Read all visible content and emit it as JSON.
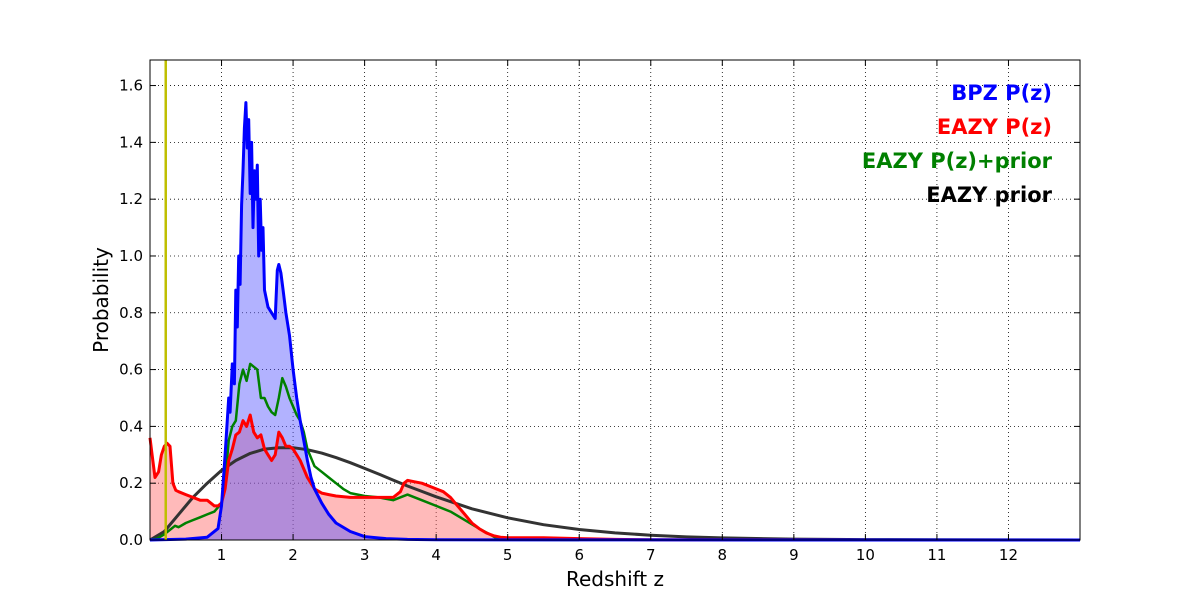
{
  "chart_data": {
    "type": "area",
    "title": "",
    "xlabel": "Redshift z",
    "ylabel": "Probability",
    "xlim": [
      0,
      13
    ],
    "ylim": [
      0,
      1.69
    ],
    "xticks": [
      1,
      2,
      3,
      4,
      5,
      6,
      7,
      8,
      9,
      10,
      11,
      12
    ],
    "xtick_labels": [
      "1",
      "2",
      "3",
      "4",
      "5",
      "6",
      "7",
      "8",
      "9",
      "10",
      "11",
      "12"
    ],
    "yticks": [
      0,
      0.2,
      0.4,
      0.6,
      0.8,
      1.0,
      1.2,
      1.4,
      1.6
    ],
    "ytick_labels": [
      "0.0",
      "0.2",
      "0.4",
      "0.6",
      "0.8",
      "1.0",
      "1.2",
      "1.4",
      "1.6"
    ],
    "grid": true,
    "legend_position": "top-right",
    "vertical_line": {
      "x": 0.22,
      "color": "#bfbf00"
    },
    "series": [
      {
        "name": "BPZ P(z)",
        "color": "#0000ff",
        "fill": "#5555ff",
        "filled": true,
        "x": [
          0,
          0.5,
          0.8,
          0.95,
          1.0,
          1.05,
          1.1,
          1.12,
          1.15,
          1.18,
          1.2,
          1.22,
          1.24,
          1.26,
          1.28,
          1.3,
          1.32,
          1.34,
          1.36,
          1.38,
          1.4,
          1.42,
          1.44,
          1.46,
          1.48,
          1.5,
          1.52,
          1.54,
          1.56,
          1.58,
          1.6,
          1.65,
          1.7,
          1.75,
          1.78,
          1.8,
          1.83,
          1.86,
          1.9,
          1.95,
          2.0,
          2.05,
          2.1,
          2.15,
          2.2,
          2.25,
          2.3,
          2.4,
          2.5,
          2.6,
          2.8,
          3.0,
          3.3,
          3.6,
          4.0,
          5.0,
          7.0,
          10.0,
          13.0
        ],
        "y": [
          0,
          0.003,
          0.01,
          0.04,
          0.12,
          0.3,
          0.5,
          0.45,
          0.62,
          0.55,
          0.88,
          0.75,
          1.0,
          0.9,
          1.18,
          1.3,
          1.45,
          1.54,
          1.38,
          1.48,
          1.22,
          1.4,
          1.1,
          1.3,
          1.2,
          1.32,
          1.0,
          1.2,
          1.02,
          1.1,
          0.88,
          0.82,
          0.8,
          0.78,
          0.95,
          0.97,
          0.94,
          0.88,
          0.8,
          0.72,
          0.6,
          0.5,
          0.42,
          0.35,
          0.28,
          0.22,
          0.18,
          0.13,
          0.09,
          0.06,
          0.03,
          0.012,
          0.005,
          0.002,
          0.001,
          0.0005,
          0.0002,
          0.0001,
          0.0
        ]
      },
      {
        "name": "EAZY P(z)",
        "color": "#ff0000",
        "fill": "#ff6666",
        "filled": true,
        "x": [
          0,
          0.03,
          0.07,
          0.12,
          0.16,
          0.2,
          0.24,
          0.28,
          0.32,
          0.36,
          0.4,
          0.5,
          0.6,
          0.7,
          0.8,
          0.85,
          0.9,
          0.95,
          1.0,
          1.05,
          1.1,
          1.15,
          1.2,
          1.25,
          1.3,
          1.35,
          1.4,
          1.45,
          1.5,
          1.55,
          1.6,
          1.65,
          1.7,
          1.75,
          1.8,
          1.85,
          1.9,
          1.95,
          2.0,
          2.05,
          2.1,
          2.15,
          2.2,
          2.3,
          2.4,
          2.5,
          2.6,
          2.8,
          3.0,
          3.2,
          3.4,
          3.5,
          3.55,
          3.6,
          3.7,
          3.8,
          3.9,
          4.0,
          4.1,
          4.2,
          4.3,
          4.4,
          4.5,
          4.6,
          4.7,
          4.8,
          4.9,
          5.0,
          5.5,
          6.0,
          6.5,
          7.0,
          8.0,
          13.0
        ],
        "y": [
          0.36,
          0.3,
          0.22,
          0.24,
          0.3,
          0.33,
          0.34,
          0.33,
          0.2,
          0.175,
          0.17,
          0.16,
          0.15,
          0.14,
          0.14,
          0.13,
          0.12,
          0.12,
          0.13,
          0.18,
          0.28,
          0.32,
          0.37,
          0.38,
          0.42,
          0.4,
          0.44,
          0.38,
          0.36,
          0.37,
          0.32,
          0.3,
          0.28,
          0.3,
          0.38,
          0.36,
          0.33,
          0.33,
          0.32,
          0.3,
          0.28,
          0.25,
          0.22,
          0.18,
          0.165,
          0.16,
          0.155,
          0.15,
          0.15,
          0.15,
          0.15,
          0.17,
          0.2,
          0.21,
          0.205,
          0.2,
          0.19,
          0.18,
          0.17,
          0.15,
          0.12,
          0.09,
          0.06,
          0.04,
          0.025,
          0.015,
          0.01,
          0.008,
          0.008,
          0.005,
          0.002,
          0.001,
          0.0005,
          0.0
        ]
      },
      {
        "name": "EAZY P(z)+prior",
        "color": "#008000",
        "fill": "",
        "filled": false,
        "x": [
          0,
          0.1,
          0.2,
          0.3,
          0.35,
          0.4,
          0.5,
          0.6,
          0.7,
          0.8,
          0.9,
          1.0,
          1.05,
          1.1,
          1.15,
          1.2,
          1.25,
          1.3,
          1.35,
          1.4,
          1.45,
          1.5,
          1.55,
          1.6,
          1.65,
          1.7,
          1.75,
          1.8,
          1.85,
          1.9,
          1.95,
          2.0,
          2.05,
          2.1,
          2.15,
          2.2,
          2.3,
          2.4,
          2.5,
          2.6,
          2.7,
          2.8,
          3.0,
          3.2,
          3.4,
          3.6,
          3.8,
          4.0,
          4.2,
          4.4,
          4.6,
          4.75,
          4.85,
          5.0,
          6.0
        ],
        "y": [
          0,
          0.005,
          0.02,
          0.04,
          0.05,
          0.045,
          0.06,
          0.07,
          0.08,
          0.09,
          0.1,
          0.13,
          0.2,
          0.35,
          0.4,
          0.42,
          0.55,
          0.6,
          0.56,
          0.62,
          0.61,
          0.6,
          0.5,
          0.5,
          0.47,
          0.45,
          0.44,
          0.5,
          0.57,
          0.54,
          0.5,
          0.47,
          0.44,
          0.42,
          0.38,
          0.32,
          0.26,
          0.24,
          0.22,
          0.2,
          0.18,
          0.165,
          0.155,
          0.15,
          0.14,
          0.16,
          0.14,
          0.12,
          0.1,
          0.07,
          0.04,
          0.02,
          0.005,
          0.001,
          0.0
        ]
      },
      {
        "name": "EAZY prior",
        "color": "#333333",
        "fill": "",
        "filled": false,
        "x": [
          0,
          0.2,
          0.4,
          0.6,
          0.8,
          1.0,
          1.2,
          1.4,
          1.6,
          1.8,
          2.0,
          2.2,
          2.4,
          2.6,
          2.8,
          3.0,
          3.2,
          3.4,
          3.6,
          3.8,
          4.0,
          4.5,
          5.0,
          5.5,
          6.0,
          6.5,
          7.0,
          7.5,
          8.0,
          9.0,
          10.0,
          11.0,
          12.0,
          13.0
        ],
        "y": [
          0.0,
          0.03,
          0.09,
          0.15,
          0.2,
          0.245,
          0.28,
          0.305,
          0.32,
          0.325,
          0.325,
          0.318,
          0.306,
          0.29,
          0.272,
          0.252,
          0.232,
          0.211,
          0.19,
          0.171,
          0.152,
          0.11,
          0.078,
          0.054,
          0.037,
          0.025,
          0.017,
          0.011,
          0.0075,
          0.0033,
          0.0015,
          0.0007,
          0.0003,
          0.0001
        ]
      }
    ]
  }
}
